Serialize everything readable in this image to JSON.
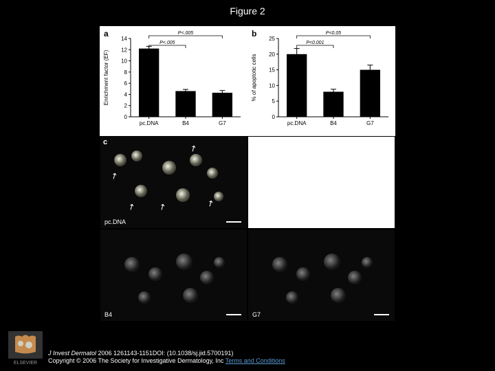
{
  "title": "Figure 2",
  "chartA": {
    "label": "a",
    "ylabel": "Enrichment factor (EF)",
    "ylim": [
      0,
      14
    ],
    "yticks": [
      0,
      2,
      4,
      6,
      8,
      10,
      12,
      14
    ],
    "categories": [
      "pc.DNA",
      "B4",
      "G7"
    ],
    "values": [
      12.2,
      4.6,
      4.3
    ],
    "errors": [
      0.4,
      0.3,
      0.4
    ],
    "sig_labels": [
      "P<.005",
      "P<.005"
    ],
    "bar_color": "#000000",
    "background": "#ffffff",
    "font_size": 8
  },
  "chartB": {
    "label": "b",
    "ylabel": "% of apoptotic cells",
    "ylim": [
      0,
      25
    ],
    "yticks": [
      0,
      5,
      10,
      15,
      20,
      25
    ],
    "categories": [
      "pc.DNA",
      "B4",
      "G7"
    ],
    "values": [
      20,
      8,
      15
    ],
    "errors": [
      1.8,
      0.8,
      1.5
    ],
    "sig_labels": [
      "P<0.001",
      "P<0.05"
    ],
    "bar_color": "#000000",
    "background": "#ffffff",
    "font_size": 8
  },
  "panelC": {
    "label": "c",
    "micrographs": [
      {
        "row": 0,
        "col": 0,
        "label": "pc.DNA",
        "empty": false,
        "bright": true
      },
      {
        "row": 0,
        "col": 1,
        "label": "",
        "empty": true,
        "bright": false
      },
      {
        "row": 1,
        "col": 0,
        "label": "B4",
        "empty": false,
        "bright": false
      },
      {
        "row": 1,
        "col": 1,
        "label": "G7",
        "empty": false,
        "bright": false
      }
    ]
  },
  "footer": {
    "journal": "J Invest Dermatol",
    "citation_text": " 2006 1261143-1151DOI: (10.1038/sj.jid.5700191)",
    "copyright": "Copyright © 2006 The Society for Investigative Dermatology, Inc ",
    "terms_text": "Terms and Conditions",
    "logo_text": "ELSEVIER"
  },
  "colors": {
    "page_bg": "#000000",
    "text": "#ffffff",
    "link": "#5b9bd5",
    "logo_orange": "#e87a2e",
    "logo_grey": "#999999"
  }
}
